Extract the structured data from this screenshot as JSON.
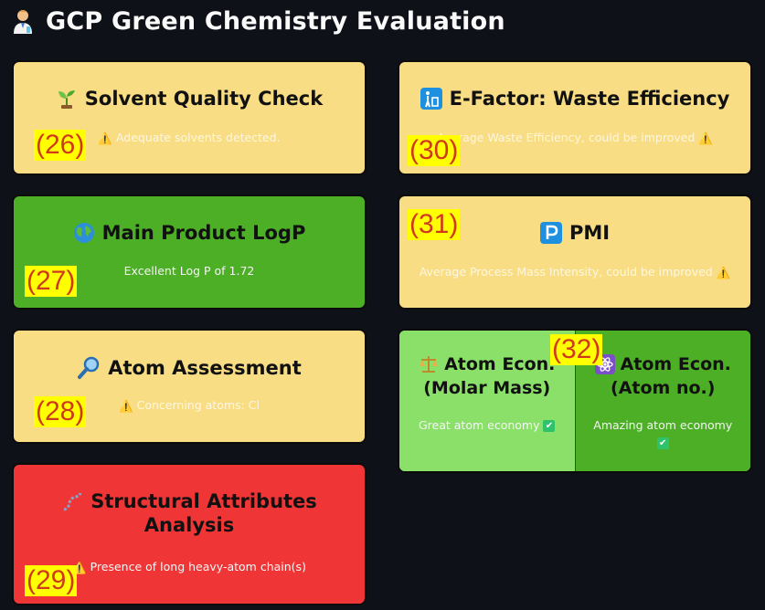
{
  "header": {
    "title": "GCP Green Chemistry Evaluation",
    "icon": "scientist-icon"
  },
  "cards": {
    "solvent": {
      "title": "Solvent Quality Check",
      "message": "Adequate solvents detected.",
      "badge": "(26)",
      "status": "warning",
      "icon": "seedling-icon"
    },
    "logp": {
      "title": "Main Product LogP",
      "message": "Excellent Log P of 1.72",
      "badge": "(27)",
      "status": "good",
      "icon": "globe-icon"
    },
    "atom": {
      "title": "Atom Assessment",
      "message": "Concerning atoms: Cl",
      "badge": "(28)",
      "status": "warning",
      "icon": "magnifier-icon"
    },
    "structural": {
      "title_line1": "Structural Attributes",
      "title_line2": "Analysis",
      "message": "Presence of long heavy-atom chain(s)",
      "badge": "(29)",
      "status": "bad",
      "icon": "chain-icon"
    },
    "efactor": {
      "title": "E-Factor: Waste Efficiency",
      "message": "Average Waste Efficiency, could be improved",
      "badge": "(30)",
      "status": "warning",
      "icon": "recycle-icon"
    },
    "pmi": {
      "title": "PMI",
      "message": "Average Process Mass Intensity, could be improved",
      "badge": "(31)",
      "status": "warning",
      "icon": "p-button-icon"
    },
    "atom_econ": {
      "badge": "(32)",
      "molar": {
        "title_line1": "Atom Econ.",
        "title_line2": "(Molar Mass)",
        "message": "Great atom economy",
        "icon": "scales-icon"
      },
      "atomno": {
        "title_line1": "Atom Econ.",
        "title_line2": "(Atom no.)",
        "message": "Amazing atom economy",
        "icon": "atom-icon"
      }
    }
  },
  "colors": {
    "background": "#0e1117",
    "warning": "#f8dd84",
    "good": "#4caf26",
    "great": "#8be06a",
    "bad": "#ef3535",
    "badge_bg": "#ffff00",
    "badge_text": "#d0391c"
  }
}
